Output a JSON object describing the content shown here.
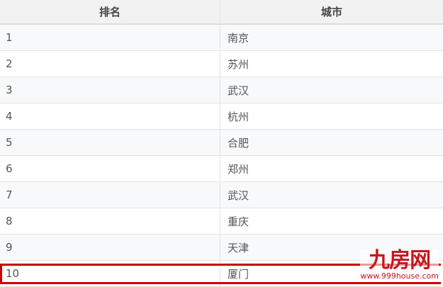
{
  "headers": {
    "rank": "排名",
    "city": "城市"
  },
  "rows": [
    {
      "rank": "1",
      "city": "南京"
    },
    {
      "rank": "2",
      "city": "苏州"
    },
    {
      "rank": "3",
      "city": "武汉"
    },
    {
      "rank": "4",
      "city": "杭州"
    },
    {
      "rank": "5",
      "city": "合肥"
    },
    {
      "rank": "6",
      "city": "郑州"
    },
    {
      "rank": "7",
      "city": "武汉"
    },
    {
      "rank": "8",
      "city": "重庆"
    },
    {
      "rank": "9",
      "city": "天津"
    },
    {
      "rank": "10",
      "city": "厦门"
    }
  ],
  "highlight_color": "#cc0000",
  "watermark": {
    "logo": "九房网",
    "url": "www.999house.com"
  }
}
